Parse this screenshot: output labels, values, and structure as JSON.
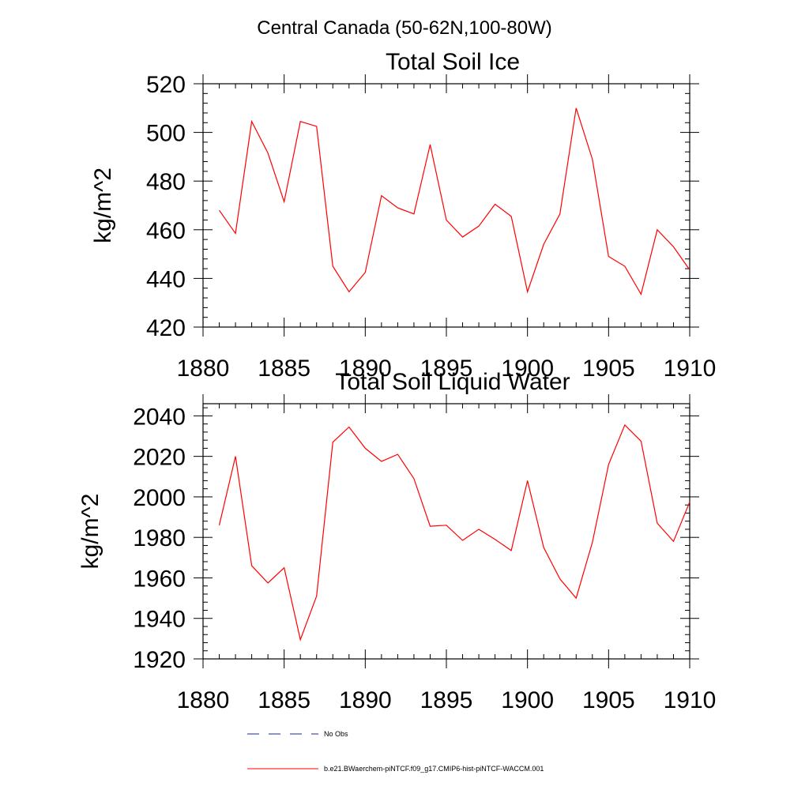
{
  "figure": {
    "main_title": "Central Canada (50-62N,100-80W)",
    "legend": [
      {
        "label": "No Obs",
        "color": "#1a2a8a",
        "style": "dashed"
      },
      {
        "label": "b.e21.BWaerchem-piNTCF.f09_g17.CMIP6-hist-piNTCF-WACCM.001",
        "color": "#ff0000",
        "style": "solid"
      }
    ]
  },
  "chart_data": [
    {
      "type": "line",
      "title": "Total Soil Ice",
      "xlabel": "",
      "ylabel": "kg/m^2",
      "xlim": [
        1880,
        1910
      ],
      "ylim": [
        420,
        520
      ],
      "xticks": [
        1880,
        1885,
        1890,
        1895,
        1900,
        1905,
        1910
      ],
      "yticks": [
        420,
        440,
        460,
        480,
        500,
        520
      ],
      "x": [
        1881,
        1882,
        1883,
        1884,
        1885,
        1886,
        1887,
        1888,
        1889,
        1890,
        1891,
        1892,
        1893,
        1894,
        1895,
        1896,
        1897,
        1898,
        1899,
        1900,
        1901,
        1902,
        1903,
        1904,
        1905,
        1906,
        1907,
        1908,
        1909,
        1910
      ],
      "series": [
        {
          "color": "#ff0000",
          "values": [
            468,
            458.5,
            504.5,
            491.5,
            471.5,
            504.5,
            502.5,
            445,
            434.5,
            442.5,
            474,
            469,
            466.5,
            495,
            464,
            457,
            461.5,
            470.5,
            465.5,
            434.5,
            454,
            466.5,
            510,
            489,
            449,
            445,
            433.5,
            460,
            453,
            443.5
          ]
        }
      ]
    },
    {
      "type": "line",
      "title": "Total Soil Liquid Water",
      "xlabel": "",
      "ylabel": "kg/m^2",
      "xlim": [
        1880,
        1910
      ],
      "ylim": [
        1920,
        2046
      ],
      "xticks": [
        1880,
        1885,
        1890,
        1895,
        1900,
        1905,
        1910
      ],
      "yticks": [
        1920,
        1940,
        1960,
        1980,
        2000,
        2020,
        2040
      ],
      "x": [
        1881,
        1882,
        1883,
        1884,
        1885,
        1886,
        1887,
        1888,
        1889,
        1890,
        1891,
        1892,
        1893,
        1894,
        1895,
        1896,
        1897,
        1898,
        1899,
        1900,
        1901,
        1902,
        1903,
        1904,
        1905,
        1906,
        1907,
        1908,
        1909,
        1910
      ],
      "series": [
        {
          "color": "#ff0000",
          "values": [
            1986,
            2020,
            1966,
            1957.5,
            1965,
            1929.5,
            1951,
            2027,
            2034.5,
            2024,
            2017.5,
            2021,
            2009,
            1985.5,
            1986,
            1978.5,
            1984,
            1979,
            1973.5,
            2008,
            1975,
            1959.5,
            1950,
            1977.5,
            2016,
            2035.5,
            2027.5,
            1987,
            1978,
            1997.5
          ]
        }
      ]
    }
  ]
}
